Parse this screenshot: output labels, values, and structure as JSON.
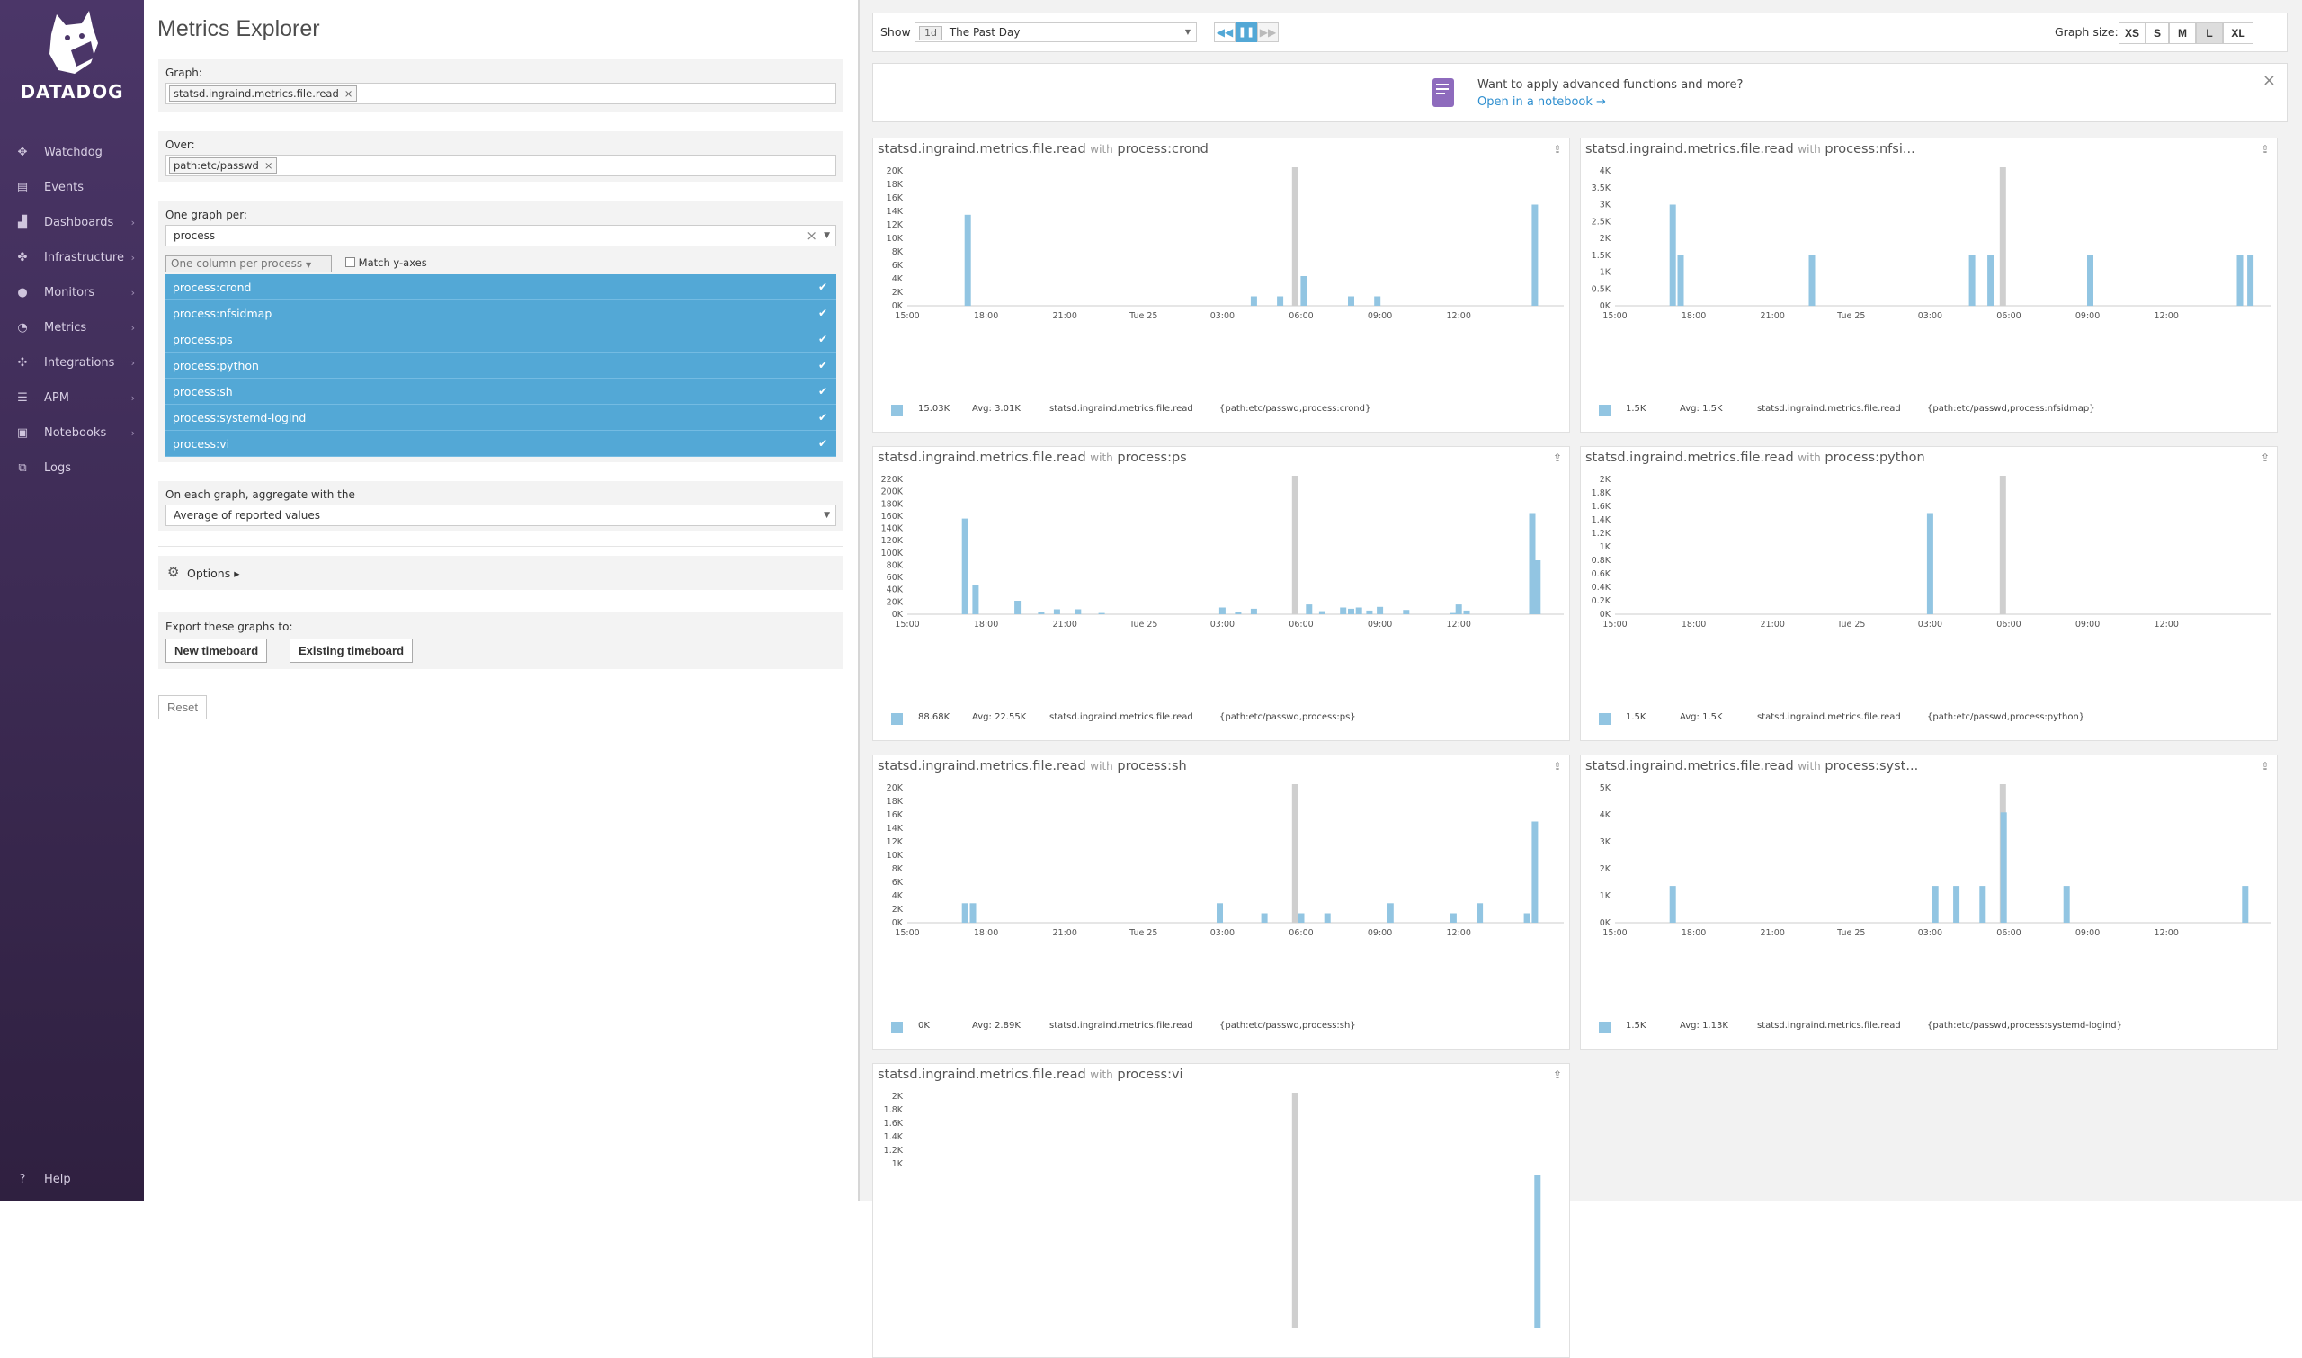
{
  "sidebar": {
    "logo_text": "DATADOG",
    "items": [
      {
        "label": "Watchdog",
        "icon": "binoculars-icon",
        "glyph": "✥",
        "chevron": false
      },
      {
        "label": "Events",
        "icon": "events-icon",
        "glyph": "▤",
        "chevron": false
      },
      {
        "label": "Dashboards",
        "icon": "dashboards-icon",
        "glyph": "▟",
        "chevron": true
      },
      {
        "label": "Infrastructure",
        "icon": "infrastructure-icon",
        "glyph": "✤",
        "chevron": true
      },
      {
        "label": "Monitors",
        "icon": "monitors-icon",
        "glyph": "●",
        "chevron": true
      },
      {
        "label": "Metrics",
        "icon": "metrics-icon",
        "glyph": "◔",
        "chevron": true
      },
      {
        "label": "Integrations",
        "icon": "integrations-icon",
        "glyph": "✣",
        "chevron": true
      },
      {
        "label": "APM",
        "icon": "apm-icon",
        "glyph": "☰",
        "chevron": true
      },
      {
        "label": "Notebooks",
        "icon": "notebooks-icon",
        "glyph": "▣",
        "chevron": true
      },
      {
        "label": "Logs",
        "icon": "logs-icon",
        "glyph": "⧉",
        "chevron": false
      }
    ],
    "help": "Help"
  },
  "explorer": {
    "title": "Metrics Explorer",
    "graph_label": "Graph:",
    "graph_tag": "statsd.ingraind.metrics.file.read",
    "over_label": "Over:",
    "over_tag": "path:etc/passwd",
    "per_label": "One graph per:",
    "per_value": "process",
    "column_select": "One column per process",
    "match_y": "Match y-axes",
    "processes": [
      "process:crond",
      "process:nfsidmap",
      "process:ps",
      "process:python",
      "process:sh",
      "process:systemd-logind",
      "process:vi"
    ],
    "aggregate_label": "On each graph, aggregate with the",
    "aggregate_value": "Average of reported values",
    "options_label": "Options ▸",
    "export_label": "Export these graphs to:",
    "new_timeboard": "New timeboard",
    "existing_timeboard": "Existing timeboard",
    "reset": "Reset"
  },
  "toolbar": {
    "show_label": "Show",
    "range_badge": "1d",
    "range_value": "The Past Day",
    "graph_size_label": "Graph size:",
    "sizes": [
      "XS",
      "S",
      "M",
      "L",
      "XL"
    ],
    "active_size": "L"
  },
  "banner": {
    "text": "Want to apply advanced functions and more?",
    "link": "Open in a notebook →"
  },
  "graphs": [
    {
      "metric": "statsd.ingraind.metrics.file.read",
      "with": "with",
      "scope": "process:crond",
      "legend_value": "15.03K",
      "legend_avg": "Avg: 3.01K",
      "legend_metric": "statsd.ingraind.metrics.file.read",
      "legend_tags": "{path:etc/passwd,process:crond}"
    },
    {
      "metric": "statsd.ingraind.metrics.file.read",
      "with": "with",
      "scope": "process:nfsi...",
      "legend_value": "1.5K",
      "legend_avg": "Avg: 1.5K",
      "legend_metric": "statsd.ingraind.metrics.file.read",
      "legend_tags": "{path:etc/passwd,process:nfsidmap}"
    },
    {
      "metric": "statsd.ingraind.metrics.file.read",
      "with": "with",
      "scope": "process:ps",
      "legend_value": "88.68K",
      "legend_avg": "Avg: 22.55K",
      "legend_metric": "statsd.ingraind.metrics.file.read",
      "legend_tags": "{path:etc/passwd,process:ps}"
    },
    {
      "metric": "statsd.ingraind.metrics.file.read",
      "with": "with",
      "scope": "process:python",
      "legend_value": "1.5K",
      "legend_avg": "Avg: 1.5K",
      "legend_metric": "statsd.ingraind.metrics.file.read",
      "legend_tags": "{path:etc/passwd,process:python}"
    },
    {
      "metric": "statsd.ingraind.metrics.file.read",
      "with": "with",
      "scope": "process:sh",
      "legend_value": "0K",
      "legend_avg": "Avg: 2.89K",
      "legend_metric": "statsd.ingraind.metrics.file.read",
      "legend_tags": "{path:etc/passwd,process:sh}"
    },
    {
      "metric": "statsd.ingraind.metrics.file.read",
      "with": "with",
      "scope": "process:syst...",
      "legend_value": "1.5K",
      "legend_avg": "Avg: 1.13K",
      "legend_metric": "statsd.ingraind.metrics.file.read",
      "legend_tags": "{path:etc/passwd,process:systemd-logind}"
    },
    {
      "metric": "statsd.ingraind.metrics.file.read",
      "with": "with",
      "scope": "process:vi",
      "legend_value": "",
      "legend_avg": "",
      "legend_metric": "",
      "legend_tags": ""
    }
  ],
  "colors": {
    "bar": "#92c5e2",
    "marker": "#cfcfcf",
    "selected": "#53a8d6",
    "sidebar": "#3e2c56"
  },
  "chart_data": [
    {
      "type": "bar",
      "title": "statsd.ingraind.metrics.file.read with process:crond",
      "x_ticks": [
        "15:00",
        "18:00",
        "21:00",
        "Tue 25",
        "03:00",
        "06:00",
        "09:00",
        "12:00"
      ],
      "y_ticks": [
        "0K",
        "2K",
        "4K",
        "6K",
        "8K",
        "10K",
        "12K",
        "14K",
        "16K",
        "18K",
        "20K"
      ],
      "ylim": [
        0,
        20000
      ],
      "x": [
        17.3,
        28.2,
        29.2,
        30.1,
        31.9,
        32.9,
        38.9
      ],
      "values": [
        13500,
        1400,
        1400,
        4400,
        1400,
        1400,
        15000
      ]
    },
    {
      "type": "bar",
      "title": "statsd.ingraind.metrics.file.read with process:nfsi...",
      "x_ticks": [
        "15:00",
        "18:00",
        "21:00",
        "Tue 25",
        "03:00",
        "06:00",
        "09:00",
        "12:00"
      ],
      "y_ticks": [
        "0K",
        "0.5K",
        "1K",
        "1.5K",
        "2K",
        "2.5K",
        "3K",
        "3.5K",
        "4K"
      ],
      "ylim": [
        0,
        4000
      ],
      "x": [
        17.2,
        17.5,
        22.5,
        28.6,
        29.3,
        33.1,
        38.8,
        39.2
      ],
      "values": [
        3000,
        1500,
        1500,
        1500,
        1500,
        1500,
        1500,
        1500
      ]
    },
    {
      "type": "bar",
      "title": "statsd.ingraind.metrics.file.read with process:ps",
      "x_ticks": [
        "15:00",
        "18:00",
        "21:00",
        "Tue 25",
        "03:00",
        "06:00",
        "09:00",
        "12:00"
      ],
      "y_ticks": [
        "0K",
        "20K",
        "40K",
        "60K",
        "80K",
        "100K",
        "120K",
        "140K",
        "160K",
        "180K",
        "200K",
        "220K"
      ],
      "ylim": [
        0,
        220000
      ],
      "x": [
        17.2,
        17.6,
        19.2,
        20.1,
        20.7,
        21.5,
        22.4,
        27.0,
        27.6,
        28.2,
        30.3,
        30.8,
        31.6,
        31.9,
        32.2,
        32.6,
        33.0,
        34.0,
        35.8,
        36.0,
        36.3,
        38.8,
        39.0
      ],
      "values": [
        156000,
        48000,
        22000,
        3000,
        8000,
        8000,
        2000,
        11000,
        4000,
        9000,
        16000,
        5000,
        11000,
        9000,
        11000,
        6000,
        12000,
        7000,
        2000,
        16000,
        6000,
        165000,
        88000
      ]
    },
    {
      "type": "bar",
      "title": "statsd.ingraind.metrics.file.read with process:python",
      "x_ticks": [
        "15:00",
        "18:00",
        "21:00",
        "Tue 25",
        "03:00",
        "06:00",
        "09:00",
        "12:00"
      ],
      "y_ticks": [
        "0K",
        "0.2K",
        "0.4K",
        "0.6K",
        "0.8K",
        "1K",
        "1.2K",
        "1.4K",
        "1.6K",
        "1.8K",
        "2K"
      ],
      "ylim": [
        0,
        2000
      ],
      "x": [
        27.0
      ],
      "values": [
        1500
      ]
    },
    {
      "type": "bar",
      "title": "statsd.ingraind.metrics.file.read with process:sh",
      "x_ticks": [
        "15:00",
        "18:00",
        "21:00",
        "Tue 25",
        "03:00",
        "06:00",
        "09:00",
        "12:00"
      ],
      "y_ticks": [
        "0K",
        "2K",
        "4K",
        "6K",
        "8K",
        "10K",
        "12K",
        "14K",
        "16K",
        "18K",
        "20K"
      ],
      "ylim": [
        0,
        20000
      ],
      "x": [
        17.2,
        17.5,
        26.9,
        28.6,
        30.0,
        31.0,
        33.4,
        35.8,
        36.8,
        38.6,
        38.9
      ],
      "values": [
        2900,
        2900,
        2900,
        1400,
        1400,
        1400,
        2900,
        1400,
        2900,
        1400,
        15000
      ]
    },
    {
      "type": "bar",
      "title": "statsd.ingraind.metrics.file.read with process:syst...",
      "x_ticks": [
        "15:00",
        "18:00",
        "21:00",
        "Tue 25",
        "03:00",
        "06:00",
        "09:00",
        "12:00"
      ],
      "y_ticks": [
        "0K",
        "1K",
        "2K",
        "3K",
        "4K",
        "5K"
      ],
      "ylim": [
        0,
        5500
      ],
      "x": [
        17.2,
        27.2,
        28.0,
        29.0,
        29.8,
        32.2,
        39.0
      ],
      "values": [
        1500,
        1500,
        1500,
        1500,
        4500,
        1500,
        1500
      ]
    },
    {
      "type": "bar",
      "title": "statsd.ingraind.metrics.file.read with process:vi",
      "x_ticks": [],
      "y_ticks": [
        "2K",
        "1.8K",
        "1.6K",
        "1.4K",
        "1.2K",
        "1K"
      ],
      "ylim": [
        1000,
        2000
      ],
      "x": [
        39.0
      ],
      "values": [
        1500
      ]
    }
  ]
}
